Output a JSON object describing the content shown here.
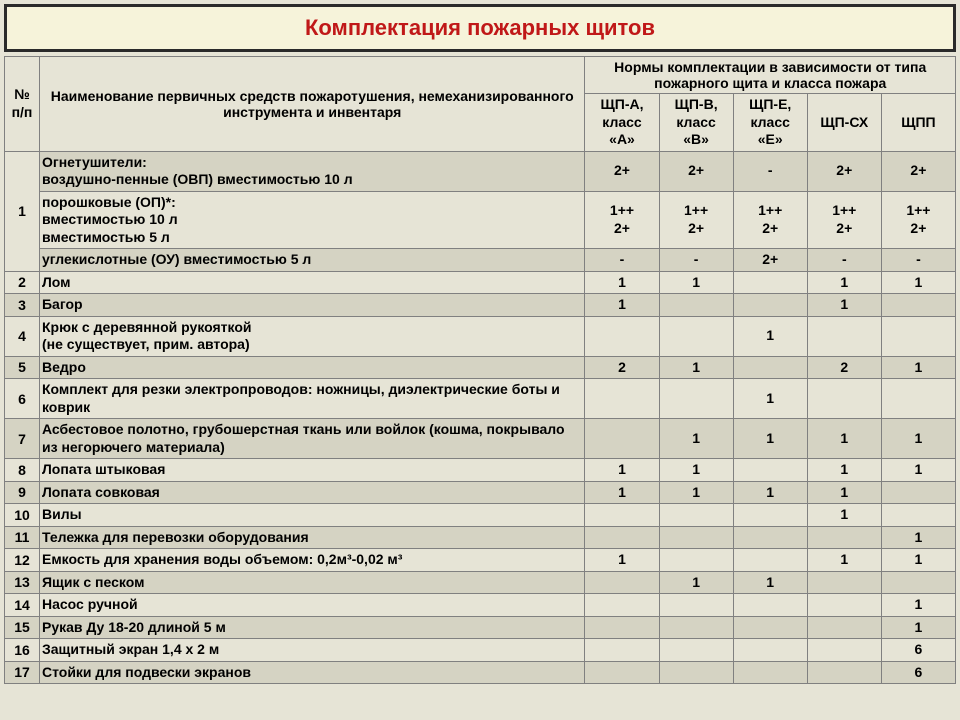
{
  "title": "Комплектация пожарных щитов",
  "header": {
    "num": "№\nп/п",
    "name": "Наименование первичных средств пожаротушения, немеханизированного инструмента и инвентаря",
    "norms": "Нормы комплектации в зависимости от типа пожарного щита и класса пожара",
    "cols": [
      "ЩП-А,\nкласс\n«А»",
      "ЩП-В,\nкласс\n«В»",
      "ЩП-Е,\nкласс\n«Е»",
      "ЩП-СХ",
      "ЩПП"
    ]
  },
  "rows": [
    {
      "shade": true,
      "num": "",
      "rowspan": 3,
      "numLabel": "1",
      "name": "Огнетушители:\nвоздушно-пенные (ОВП) вместимостью 10 л",
      "v": [
        "2+",
        "2+",
        "-",
        "2+",
        "2+"
      ]
    },
    {
      "shade": false,
      "name": "порошковые (ОП)*:\nвместимостью 10 л\nвместимостью 5 л",
      "v": [
        "1++\n2+",
        "1++\n2+",
        "1++\n2+",
        "1++\n2+",
        "1++\n2+"
      ]
    },
    {
      "shade": true,
      "name": "углекислотные (ОУ) вместимостью 5 л",
      "v": [
        "-",
        "-",
        "2+",
        "-",
        "-"
      ]
    },
    {
      "shade": false,
      "num": "2",
      "name": "Лом",
      "v": [
        "1",
        "1",
        "",
        "1",
        "1"
      ]
    },
    {
      "shade": true,
      "num": "3",
      "name": "Багор",
      "v": [
        "1",
        "",
        "",
        "1",
        ""
      ]
    },
    {
      "shade": false,
      "num": "4",
      "name": "Крюк с деревянной рукояткой\n(не существует, прим. автора)",
      "v": [
        "",
        "",
        "1",
        "",
        ""
      ]
    },
    {
      "shade": true,
      "num": "5",
      "name": "Ведро",
      "v": [
        "2",
        "1",
        "",
        "2",
        "1"
      ]
    },
    {
      "shade": false,
      "num": "6",
      "name": "Комплект для резки электропроводов: ножницы, диэлектрические боты и коврик",
      "v": [
        "",
        "",
        "1",
        "",
        ""
      ]
    },
    {
      "shade": true,
      "num": "7",
      "name": "Асбестовое полотно, грубошерстная ткань или войлок (кошма, покрывало из негорючего материала)",
      "v": [
        "",
        "1",
        "1",
        "1",
        "1"
      ]
    },
    {
      "shade": false,
      "num": "8",
      "name": "Лопата штыковая",
      "v": [
        "1",
        "1",
        "",
        "1",
        "1"
      ]
    },
    {
      "shade": true,
      "num": "9",
      "name": "Лопата совковая",
      "v": [
        "1",
        "1",
        "1",
        "1",
        ""
      ]
    },
    {
      "shade": false,
      "num": "10",
      "name": "Вилы",
      "v": [
        "",
        "",
        "",
        "1",
        ""
      ]
    },
    {
      "shade": true,
      "num": "11",
      "name": "Тележка для перевозки оборудования",
      "v": [
        "",
        "",
        "",
        "",
        "1"
      ]
    },
    {
      "shade": false,
      "num": "12",
      "name": "Емкость для хранения воды объемом: 0,2м³-0,02 м³",
      "v": [
        "1",
        "",
        "",
        "1",
        "1"
      ]
    },
    {
      "shade": true,
      "num": "13",
      "name": "Ящик с песком",
      "v": [
        "",
        "1",
        "1",
        "",
        ""
      ]
    },
    {
      "shade": false,
      "num": "14",
      "name": "Насос ручной",
      "v": [
        "",
        "",
        "",
        "",
        "1"
      ]
    },
    {
      "shade": true,
      "num": "15",
      "name": "Рукав Ду 18-20 длиной 5 м",
      "v": [
        "",
        "",
        "",
        "",
        "1"
      ]
    },
    {
      "shade": false,
      "num": "16",
      "name": "Защитный экран 1,4 х 2 м",
      "v": [
        "",
        "",
        "",
        "",
        "6"
      ]
    },
    {
      "shade": true,
      "num": "17",
      "name": "Стойки для подвески экранов",
      "v": [
        "",
        "",
        "",
        "",
        "6"
      ]
    }
  ]
}
